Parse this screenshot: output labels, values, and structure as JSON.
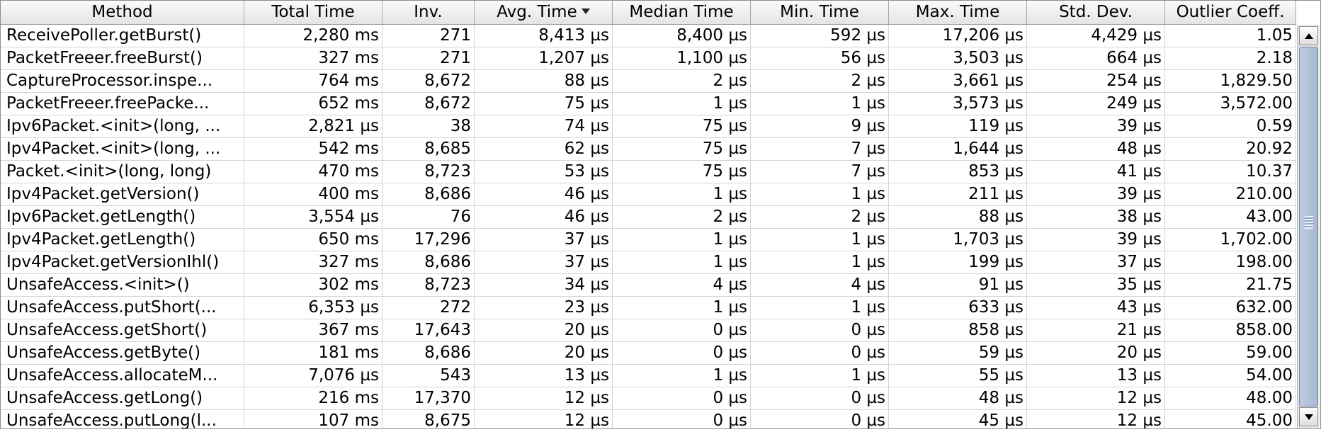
{
  "table": {
    "columns": [
      "Method",
      "Total Time",
      "Inv.",
      "Avg. Time",
      "Median Time",
      "Min. Time",
      "Max. Time",
      "Std. Dev.",
      "Outlier Coeff."
    ],
    "sorted_column": "Avg. Time",
    "sort_direction": "descending",
    "rows": [
      [
        "ReceivePoller.getBurst()",
        "2,280 ms",
        "271",
        "8,413 µs",
        "8,400 µs",
        "592 µs",
        "17,206 µs",
        "4,429 µs",
        "1.05"
      ],
      [
        "PacketFreeer.freeBurst()",
        "327 ms",
        "271",
        "1,207 µs",
        "1,100 µs",
        "56 µs",
        "3,503 µs",
        "664 µs",
        "2.18"
      ],
      [
        "CaptureProcessor.inspe...",
        "764 ms",
        "8,672",
        "88 µs",
        "2 µs",
        "2 µs",
        "3,661 µs",
        "254 µs",
        "1,829.50"
      ],
      [
        "PacketFreeer.freePacke...",
        "652 ms",
        "8,672",
        "75 µs",
        "1 µs",
        "1 µs",
        "3,573 µs",
        "249 µs",
        "3,572.00"
      ],
      [
        "Ipv6Packet.<init>(long, ...",
        "2,821 µs",
        "38",
        "74 µs",
        "75 µs",
        "9 µs",
        "119 µs",
        "39 µs",
        "0.59"
      ],
      [
        "Ipv4Packet.<init>(long, ...",
        "542 ms",
        "8,685",
        "62 µs",
        "75 µs",
        "7 µs",
        "1,644 µs",
        "48 µs",
        "20.92"
      ],
      [
        "Packet.<init>(long, long)",
        "470 ms",
        "8,723",
        "53 µs",
        "75 µs",
        "7 µs",
        "853 µs",
        "41 µs",
        "10.37"
      ],
      [
        "Ipv4Packet.getVersion()",
        "400 ms",
        "8,686",
        "46 µs",
        "1 µs",
        "1 µs",
        "211 µs",
        "39 µs",
        "210.00"
      ],
      [
        "Ipv6Packet.getLength()",
        "3,554 µs",
        "76",
        "46 µs",
        "2 µs",
        "2 µs",
        "88 µs",
        "38 µs",
        "43.00"
      ],
      [
        "Ipv4Packet.getLength()",
        "650 ms",
        "17,296",
        "37 µs",
        "1 µs",
        "1 µs",
        "1,703 µs",
        "39 µs",
        "1,702.00"
      ],
      [
        "Ipv4Packet.getVersionIhl()",
        "327 ms",
        "8,686",
        "37 µs",
        "1 µs",
        "1 µs",
        "199 µs",
        "37 µs",
        "198.00"
      ],
      [
        "UnsafeAccess.<init>()",
        "302 ms",
        "8,723",
        "34 µs",
        "4 µs",
        "4 µs",
        "91 µs",
        "35 µs",
        "21.75"
      ],
      [
        "UnsafeAccess.putShort(...",
        "6,353 µs",
        "272",
        "23 µs",
        "1 µs",
        "1 µs",
        "633 µs",
        "43 µs",
        "632.00"
      ],
      [
        "UnsafeAccess.getShort()",
        "367 ms",
        "17,643",
        "20 µs",
        "0 µs",
        "0 µs",
        "858 µs",
        "21 µs",
        "858.00"
      ],
      [
        "UnsafeAccess.getByte()",
        "181 ms",
        "8,686",
        "20 µs",
        "0 µs",
        "0 µs",
        "59 µs",
        "20 µs",
        "59.00"
      ],
      [
        "UnsafeAccess.allocateM...",
        "7,076 µs",
        "543",
        "13 µs",
        "1 µs",
        "1 µs",
        "55 µs",
        "13 µs",
        "54.00"
      ],
      [
        "UnsafeAccess.getLong()",
        "216 ms",
        "17,370",
        "12 µs",
        "0 µs",
        "0 µs",
        "48 µs",
        "12 µs",
        "48.00"
      ],
      [
        "UnsafeAccess.putLong(l...",
        "107 ms",
        "8,675",
        "12 µs",
        "0 µs",
        "0 µs",
        "45 µs",
        "12 µs",
        "45.00"
      ]
    ]
  },
  "scrollbar": {
    "up_icon": "arrow-up-icon",
    "down_icon": "arrow-down-icon",
    "thumb_color": "#a6b8d2"
  }
}
